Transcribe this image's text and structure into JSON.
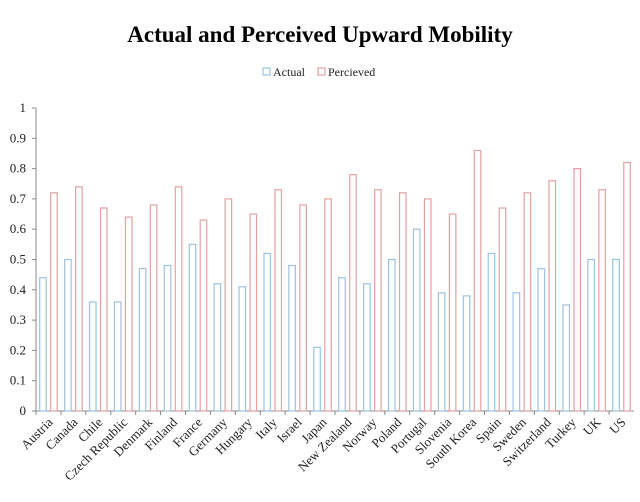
{
  "chart_data": {
    "type": "bar",
    "title": "Actual and Perceived Upward Mobility",
    "xlabel": "",
    "ylabel": "",
    "ylim": [
      0,
      1
    ],
    "yticks": [
      "0",
      "0.1",
      "0.2",
      "0.3",
      "0.4",
      "0.5",
      "0.6",
      "0.7",
      "0.8",
      "0.9",
      "1"
    ],
    "grid": false,
    "legend_position": "top-center",
    "categories": [
      "Austria",
      "Canada",
      "Chile",
      "Czech Republic",
      "Denmark",
      "Finland",
      "France",
      "Germany",
      "Hungary",
      "Italy",
      "Israel",
      "Japan",
      "New Zealand",
      "Norway",
      "Poland",
      "Portugal",
      "Slovenia",
      "South Korea",
      "Spain",
      "Sweden",
      "Switzerland",
      "Turkey",
      "UK",
      "US"
    ],
    "series": [
      {
        "name": "Actual",
        "color": "#9cc3e0",
        "values": [
          0.44,
          0.5,
          0.36,
          0.36,
          0.47,
          0.48,
          0.55,
          0.42,
          0.41,
          0.52,
          0.48,
          0.21,
          0.44,
          0.42,
          0.5,
          0.6,
          0.39,
          0.38,
          0.52,
          0.39,
          0.47,
          0.35,
          0.5,
          0.5
        ]
      },
      {
        "name": "Percieved",
        "color": "#e3a1a1",
        "values": [
          0.72,
          0.74,
          0.67,
          0.64,
          0.68,
          0.74,
          0.63,
          0.7,
          0.65,
          0.73,
          0.68,
          0.7,
          0.78,
          0.73,
          0.72,
          0.7,
          0.65,
          0.86,
          0.67,
          0.72,
          0.76,
          0.8,
          0.73,
          0.82
        ]
      }
    ]
  }
}
